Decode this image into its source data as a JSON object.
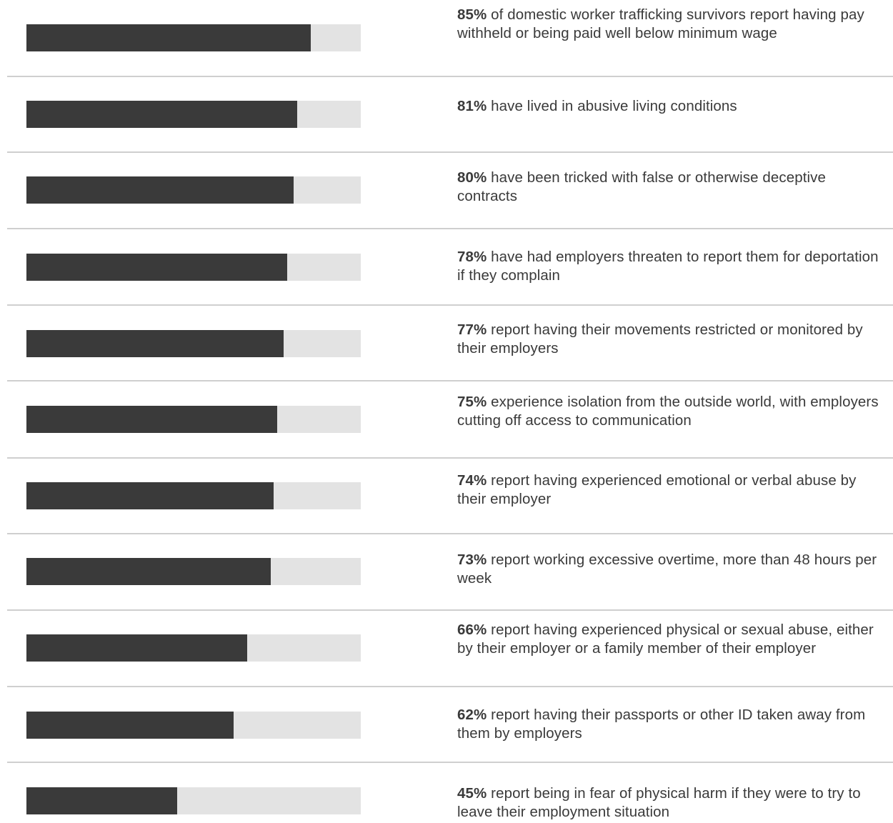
{
  "chart_data": {
    "type": "bar",
    "orientation": "horizontal",
    "colors": {
      "fill": "#3a3a3a",
      "track": "#e3e3e3",
      "divider": "#cfcfcf"
    },
    "xlim": [
      0,
      100
    ],
    "items": [
      {
        "value": 85,
        "pct_label": "85%",
        "text": " of domestic worker trafficking survivors report having pay withheld or being paid well below minimum wage"
      },
      {
        "value": 81,
        "pct_label": "81%",
        "text": " have lived in abusive living conditions"
      },
      {
        "value": 80,
        "pct_label": "80%",
        "text": " have been tricked with false or otherwise deceptive contracts"
      },
      {
        "value": 78,
        "pct_label": "78%",
        "text": " have had employers threaten to report them for deportation if they complain"
      },
      {
        "value": 77,
        "pct_label": "77%",
        "text": " report having their movements restricted or monitored by their employers"
      },
      {
        "value": 75,
        "pct_label": "75%",
        "text": " experience isolation from the outside world, with employers cutting off access to communication"
      },
      {
        "value": 74,
        "pct_label": "74%",
        "text": " report having experienced emotional or verbal abuse by their employer"
      },
      {
        "value": 73,
        "pct_label": "73%",
        "text": " report working excessive overtime, more than 48 hours per week"
      },
      {
        "value": 66,
        "pct_label": "66%",
        "text": " report having experienced physical or sexual abuse, either by their employer or a family member of their employer"
      },
      {
        "value": 62,
        "pct_label": "62%",
        "text": " report having their passports or other ID taken away from them by employers"
      },
      {
        "value": 45,
        "pct_label": "45%",
        "text": " report being in fear of physical harm if they were to try to leave their employment situation"
      }
    ]
  }
}
